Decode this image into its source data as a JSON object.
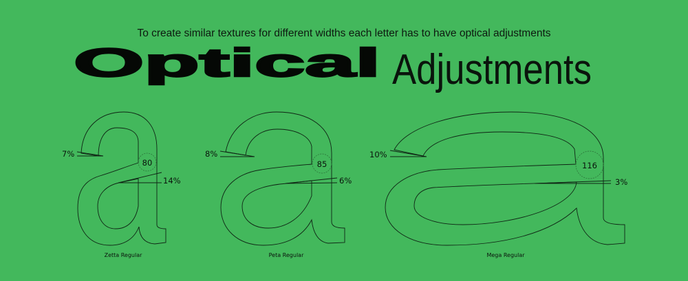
{
  "background_color": "#43b85c",
  "subtitle": "To create similar textures for different widths each letter has to have optical adjustments",
  "title": {
    "bold": "Optical",
    "light": "Adjustments"
  },
  "specimens": [
    {
      "name": "Zetta Regular",
      "glyph": "a",
      "terminal_angle": "7%",
      "joint_value": "80",
      "bar_angle": "14%"
    },
    {
      "name": "Peta Regular",
      "glyph": "a",
      "terminal_angle": "8%",
      "joint_value": "85",
      "bar_angle": "6%"
    },
    {
      "name": "Mega Regular",
      "glyph": "a",
      "terminal_angle": "10%",
      "joint_value": "116",
      "bar_angle": "3%"
    }
  ]
}
